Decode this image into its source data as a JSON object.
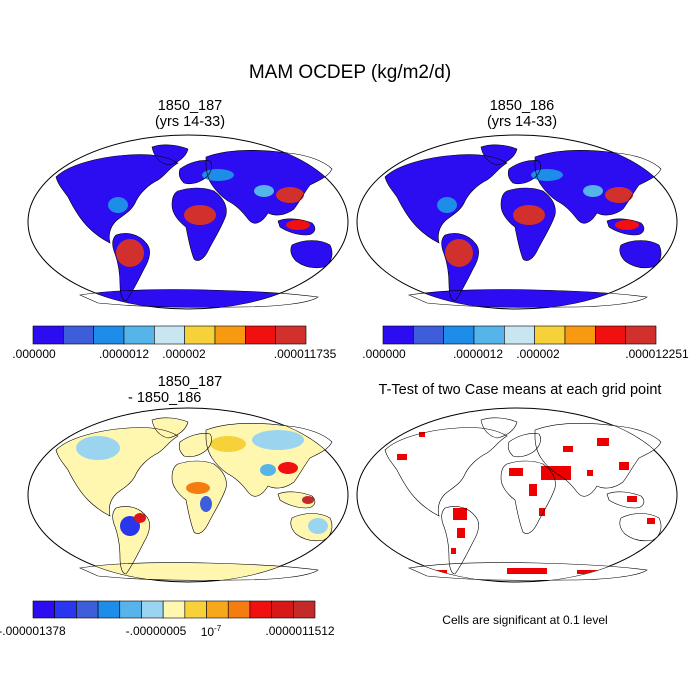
{
  "title": "MAM OCDEP (kg/m2/d)",
  "panels": {
    "top_left": {
      "title_line1": "1850_187",
      "title_line2": "(yrs 14-33)"
    },
    "top_right": {
      "title_line1": "1850_186",
      "title_line2": "(yrs 14-33)"
    },
    "bottom_left": {
      "title_line1": "1850_187",
      "title_line2": "- 1850_186"
    },
    "bottom_right": {
      "title": "T-Test of two Case means at each grid point",
      "note": "Cells are significant at 0.1 level"
    }
  },
  "colorbars": {
    "top_left": {
      "colors": [
        "#2c0df2",
        "#3d5ddb",
        "#1e8ce9",
        "#55b5ea",
        "#c8e6f2",
        "#f7d13a",
        "#f79a12",
        "#f01010",
        "#d2302c"
      ],
      "labels": [
        ".000000",
        ".0000012",
        ".000002",
        ".000011735"
      ]
    },
    "top_right": {
      "colors": [
        "#2c0df2",
        "#3d5ddb",
        "#1e8ce9",
        "#55b5ea",
        "#c8e6f2",
        "#f7d13a",
        "#f79a12",
        "#f01010",
        "#d2302c"
      ],
      "labels": [
        ".000000",
        ".0000012",
        ".000002",
        ".000012251"
      ]
    },
    "bottom_left": {
      "colors": [
        "#2c0df2",
        "#2a35ee",
        "#3d5ddb",
        "#1e8ce9",
        "#55b5ea",
        "#9ad4ee",
        "#fff6b0",
        "#f7d13a",
        "#f7a71a",
        "#f57d0f",
        "#f01010",
        "#d81818",
        "#c42a2a"
      ],
      "labels": [
        "-.000001378",
        "-.00000005",
        "10",
        "-7",
        ".0000011512"
      ]
    }
  },
  "colors": {
    "background": "#ffffff",
    "ocean": "#ffffff",
    "significant": "#ee0000"
  }
}
